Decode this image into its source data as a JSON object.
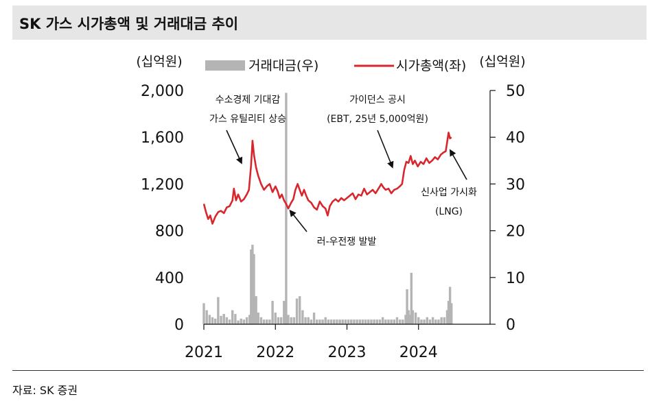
{
  "title": "SK 가스 시가총액 및 거래대금 추이",
  "source": "자료: SK 증권",
  "colors": {
    "market_cap": "#d7262c",
    "volume": "#b4b4b4",
    "title_bg": "#e6e6e6"
  },
  "chart_data": {
    "type": "bar+line",
    "left_unit": "(십억원)",
    "right_unit": "(십억원)",
    "left_axis": {
      "min": 0,
      "max": 2000,
      "ticks": [
        0,
        400,
        800,
        1200,
        1600,
        2000
      ],
      "tick_labels": [
        "0",
        "400",
        "800",
        "1,200",
        "1,600",
        "2,000"
      ]
    },
    "right_axis": {
      "min": 0,
      "max": 50,
      "ticks": [
        0,
        10,
        20,
        30,
        40,
        50
      ],
      "tick_labels": [
        "0",
        "10",
        "20",
        "30",
        "40",
        "50"
      ]
    },
    "x_axis": {
      "min": 2021.0,
      "max": 2025.0,
      "ticks": [
        2021,
        2022,
        2023,
        2024
      ],
      "tick_labels": [
        "2021",
        "2022",
        "2023",
        "2024"
      ]
    },
    "legend": [
      {
        "name": "거래대금(우)",
        "type": "bar"
      },
      {
        "name": "시가총액(좌)",
        "type": "line"
      }
    ],
    "series": [
      {
        "name": "시가총액(좌)",
        "axis": "left",
        "points": [
          [
            2021.0,
            1030
          ],
          [
            2021.03,
            960
          ],
          [
            2021.06,
            900
          ],
          [
            2021.09,
            930
          ],
          [
            2021.12,
            860
          ],
          [
            2021.16,
            920
          ],
          [
            2021.2,
            960
          ],
          [
            2021.24,
            970
          ],
          [
            2021.28,
            950
          ],
          [
            2021.32,
            1000
          ],
          [
            2021.36,
            1010
          ],
          [
            2021.4,
            1060
          ],
          [
            2021.42,
            1160
          ],
          [
            2021.45,
            1060
          ],
          [
            2021.48,
            1110
          ],
          [
            2021.52,
            1050
          ],
          [
            2021.56,
            1070
          ],
          [
            2021.6,
            1110
          ],
          [
            2021.63,
            1150
          ],
          [
            2021.66,
            1360
          ],
          [
            2021.68,
            1570
          ],
          [
            2021.7,
            1450
          ],
          [
            2021.73,
            1340
          ],
          [
            2021.76,
            1270
          ],
          [
            2021.8,
            1200
          ],
          [
            2021.84,
            1150
          ],
          [
            2021.88,
            1180
          ],
          [
            2021.92,
            1200
          ],
          [
            2021.96,
            1130
          ],
          [
            2022.0,
            1180
          ],
          [
            2022.03,
            1140
          ],
          [
            2022.06,
            1080
          ],
          [
            2022.09,
            1110
          ],
          [
            2022.12,
            1060
          ],
          [
            2022.15,
            1030
          ],
          [
            2022.18,
            990
          ],
          [
            2022.22,
            1040
          ],
          [
            2022.25,
            1070
          ],
          [
            2022.28,
            1150
          ],
          [
            2022.31,
            1200
          ],
          [
            2022.34,
            1150
          ],
          [
            2022.37,
            1100
          ],
          [
            2022.4,
            1150
          ],
          [
            2022.43,
            1100
          ],
          [
            2022.46,
            1060
          ],
          [
            2022.5,
            1040
          ],
          [
            2022.54,
            1000
          ],
          [
            2022.58,
            980
          ],
          [
            2022.62,
            1050
          ],
          [
            2022.66,
            1010
          ],
          [
            2022.7,
            990
          ],
          [
            2022.73,
            930
          ],
          [
            2022.76,
            1010
          ],
          [
            2022.8,
            1050
          ],
          [
            2022.84,
            1070
          ],
          [
            2022.88,
            1050
          ],
          [
            2022.92,
            1080
          ],
          [
            2022.96,
            1060
          ],
          [
            2023.0,
            1080
          ],
          [
            2023.04,
            1100
          ],
          [
            2023.08,
            1120
          ],
          [
            2023.12,
            1070
          ],
          [
            2023.16,
            1110
          ],
          [
            2023.2,
            1100
          ],
          [
            2023.24,
            1160
          ],
          [
            2023.28,
            1110
          ],
          [
            2023.32,
            1130
          ],
          [
            2023.36,
            1150
          ],
          [
            2023.4,
            1120
          ],
          [
            2023.44,
            1160
          ],
          [
            2023.48,
            1200
          ],
          [
            2023.51,
            1170
          ],
          [
            2023.54,
            1150
          ],
          [
            2023.58,
            1160
          ],
          [
            2023.62,
            1120
          ],
          [
            2023.66,
            1150
          ],
          [
            2023.7,
            1160
          ],
          [
            2023.74,
            1180
          ],
          [
            2023.77,
            1200
          ],
          [
            2023.8,
            1320
          ],
          [
            2023.83,
            1390
          ],
          [
            2023.86,
            1380
          ],
          [
            2023.89,
            1440
          ],
          [
            2023.92,
            1370
          ],
          [
            2023.95,
            1400
          ],
          [
            2023.99,
            1350
          ],
          [
            2024.03,
            1390
          ],
          [
            2024.07,
            1370
          ],
          [
            2024.11,
            1420
          ],
          [
            2024.15,
            1380
          ],
          [
            2024.19,
            1400
          ],
          [
            2024.23,
            1430
          ],
          [
            2024.27,
            1410
          ],
          [
            2024.31,
            1450
          ],
          [
            2024.35,
            1470
          ],
          [
            2024.38,
            1480
          ],
          [
            2024.4,
            1560
          ],
          [
            2024.42,
            1640
          ],
          [
            2024.44,
            1590
          ],
          [
            2024.46,
            1600
          ]
        ]
      },
      {
        "name": "거래대금(우)",
        "axis": "right",
        "points": [
          [
            2021.0,
            4.5
          ],
          [
            2021.04,
            3.0
          ],
          [
            2021.08,
            2.0
          ],
          [
            2021.12,
            1.5
          ],
          [
            2021.16,
            1.2
          ],
          [
            2021.2,
            5.8
          ],
          [
            2021.24,
            1.8
          ],
          [
            2021.28,
            2.2
          ],
          [
            2021.32,
            1.5
          ],
          [
            2021.36,
            1.0
          ],
          [
            2021.4,
            3.0
          ],
          [
            2021.44,
            2.2
          ],
          [
            2021.48,
            0.8
          ],
          [
            2021.52,
            1.2
          ],
          [
            2021.56,
            1.0
          ],
          [
            2021.6,
            1.5
          ],
          [
            2021.64,
            2.0
          ],
          [
            2021.66,
            16.0
          ],
          [
            2021.68,
            17.0
          ],
          [
            2021.7,
            15.0
          ],
          [
            2021.73,
            6.0
          ],
          [
            2021.76,
            2.5
          ],
          [
            2021.8,
            1.5
          ],
          [
            2021.84,
            1.0
          ],
          [
            2021.88,
            1.0
          ],
          [
            2021.92,
            1.0
          ],
          [
            2021.96,
            5.0
          ],
          [
            2022.0,
            2.5
          ],
          [
            2022.04,
            1.5
          ],
          [
            2022.08,
            1.5
          ],
          [
            2022.12,
            5.0
          ],
          [
            2022.15,
            49.5
          ],
          [
            2022.18,
            2.0
          ],
          [
            2022.22,
            1.5
          ],
          [
            2022.26,
            1.5
          ],
          [
            2022.3,
            5.5
          ],
          [
            2022.34,
            6.0
          ],
          [
            2022.38,
            3.0
          ],
          [
            2022.42,
            1.5
          ],
          [
            2022.46,
            1.5
          ],
          [
            2022.5,
            1.0
          ],
          [
            2022.54,
            2.5
          ],
          [
            2022.58,
            1.0
          ],
          [
            2022.62,
            1.0
          ],
          [
            2022.66,
            1.0
          ],
          [
            2022.7,
            1.5
          ],
          [
            2022.74,
            1.0
          ],
          [
            2022.78,
            1.0
          ],
          [
            2022.82,
            1.0
          ],
          [
            2022.86,
            1.0
          ],
          [
            2022.9,
            1.0
          ],
          [
            2022.94,
            1.0
          ],
          [
            2022.98,
            1.0
          ],
          [
            2023.02,
            1.0
          ],
          [
            2023.06,
            1.0
          ],
          [
            2023.1,
            1.0
          ],
          [
            2023.14,
            1.0
          ],
          [
            2023.18,
            1.0
          ],
          [
            2023.22,
            1.0
          ],
          [
            2023.26,
            1.0
          ],
          [
            2023.3,
            1.0
          ],
          [
            2023.34,
            1.0
          ],
          [
            2023.38,
            1.0
          ],
          [
            2023.42,
            1.0
          ],
          [
            2023.46,
            1.0
          ],
          [
            2023.5,
            1.5
          ],
          [
            2023.54,
            1.0
          ],
          [
            2023.58,
            1.0
          ],
          [
            2023.62,
            1.0
          ],
          [
            2023.66,
            1.0
          ],
          [
            2023.7,
            1.5
          ],
          [
            2023.74,
            1.0
          ],
          [
            2023.78,
            1.0
          ],
          [
            2023.82,
            2.0
          ],
          [
            2023.84,
            7.5
          ],
          [
            2023.86,
            3.0
          ],
          [
            2023.88,
            2.0
          ],
          [
            2023.9,
            11.0
          ],
          [
            2023.92,
            3.0
          ],
          [
            2023.96,
            2.5
          ],
          [
            2024.0,
            1.5
          ],
          [
            2024.04,
            1.0
          ],
          [
            2024.08,
            1.0
          ],
          [
            2024.12,
            1.5
          ],
          [
            2024.16,
            1.0
          ],
          [
            2024.2,
            1.5
          ],
          [
            2024.24,
            1.0
          ],
          [
            2024.28,
            1.0
          ],
          [
            2024.32,
            1.5
          ],
          [
            2024.36,
            1.5
          ],
          [
            2024.4,
            3.0
          ],
          [
            2024.42,
            5.0
          ],
          [
            2024.44,
            8.0
          ],
          [
            2024.46,
            4.5
          ]
        ]
      }
    ],
    "annotations": [
      {
        "lines": [
          "수소경제 기대감",
          "가스 유틸리티 상승"
        ]
      },
      {
        "lines": [
          "가이던스 공시",
          "(EBT, 25년 5,000억원)"
        ]
      },
      {
        "lines": [
          "러-우전쟁 발발"
        ]
      },
      {
        "lines": [
          "신사업 가시화",
          "(LNG)"
        ]
      }
    ]
  }
}
